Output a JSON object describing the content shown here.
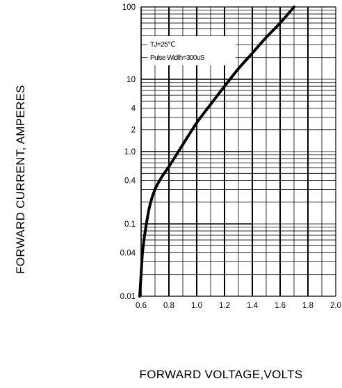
{
  "chart_data": {
    "type": "line",
    "title": "",
    "xlabel": "FORWARD VOLTAGE,VOLTS",
    "ylabel": "FORWARD CURRENT, AMPERES",
    "x_scale": "linear",
    "y_scale": "log",
    "xlim": [
      0.6,
      2.0
    ],
    "ylim": [
      0.01,
      100
    ],
    "x_ticks": [
      "0.6",
      "0.8",
      "1.0",
      "1.2",
      "1.4",
      "1.6",
      "1.8",
      "2.0"
    ],
    "y_ticks": [
      {
        "value": 100,
        "label": "100"
      },
      {
        "value": 10,
        "label": "10"
      },
      {
        "value": 4,
        "label": "4"
      },
      {
        "value": 2,
        "label": "2"
      },
      {
        "value": 1,
        "label": "1.0"
      },
      {
        "value": 0.4,
        "label": "0.4"
      },
      {
        "value": 0.1,
        "label": "0.1"
      },
      {
        "value": 0.04,
        "label": "0.04"
      },
      {
        "value": 0.01,
        "label": "0.01"
      }
    ],
    "grid": true,
    "annotations": [
      "TJ=25℃",
      "Pulse Width=300uS"
    ],
    "series": [
      {
        "color": "#000000",
        "x": [
          0.59,
          0.6,
          0.61,
          0.63,
          0.66,
          0.7,
          0.75,
          0.8,
          0.9,
          1.0,
          1.1,
          1.2,
          1.3,
          1.4,
          1.5,
          1.6,
          1.7
        ],
        "y": [
          0.01,
          0.02,
          0.04,
          0.08,
          0.17,
          0.3,
          0.45,
          0.62,
          1.25,
          2.5,
          4.5,
          8.0,
          14,
          23,
          38,
          60,
          100
        ]
      }
    ]
  }
}
